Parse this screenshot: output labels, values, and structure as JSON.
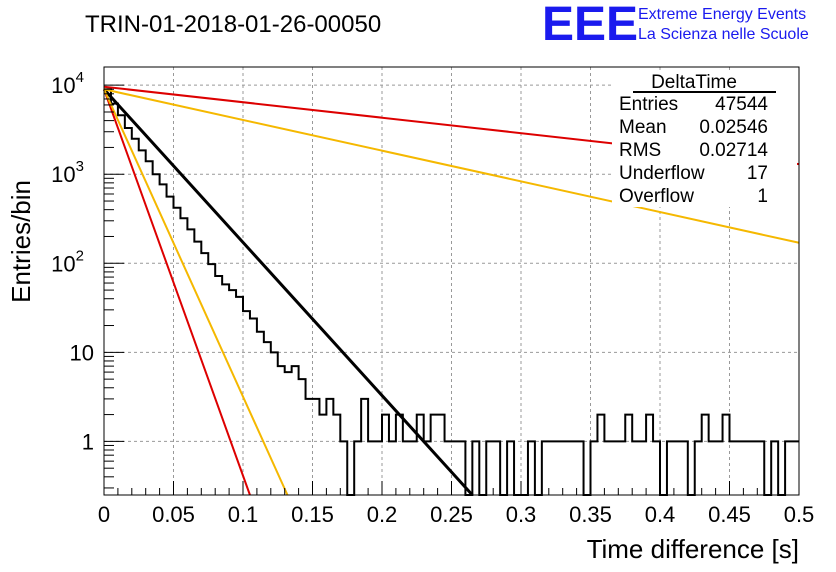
{
  "chart_data": {
    "type": "line",
    "title": "TRIN-01-2018-01-26-00050",
    "xlabel": "Time difference [s]",
    "ylabel": "Entries/bin",
    "xlim": [
      0,
      0.5
    ],
    "ylim": [
      0.25,
      16000
    ],
    "yscale": "log",
    "grid": true,
    "x_ticks": [
      "0",
      "0.05",
      "0.1",
      "0.15",
      "0.2",
      "0.25",
      "0.3",
      "0.35",
      "0.4",
      "0.45",
      "0.5"
    ],
    "y_ticks": [
      {
        "value": 1,
        "base": "1",
        "exp": ""
      },
      {
        "value": 10,
        "base": "10",
        "exp": ""
      },
      {
        "value": 100,
        "base": "10",
        "exp": "2"
      },
      {
        "value": 1000,
        "base": "10",
        "exp": "3"
      },
      {
        "value": 10000,
        "base": "10",
        "exp": "4"
      }
    ],
    "histogram": {
      "bin_width": 0.005,
      "color": "#000000",
      "counts": [
        9000,
        6200,
        4600,
        3300,
        2500,
        1850,
        1400,
        1000,
        770,
        560,
        420,
        320,
        240,
        175,
        130,
        98,
        72,
        58,
        50,
        42,
        29,
        24,
        17,
        13,
        10,
        7,
        6,
        7,
        5,
        3,
        3,
        2,
        3,
        2,
        1,
        0,
        1,
        3,
        1,
        1,
        2,
        1,
        2,
        1,
        1,
        2,
        1,
        2,
        2,
        1,
        1,
        1,
        0,
        1,
        0,
        1,
        1,
        0,
        1,
        0,
        0,
        1,
        0,
        1,
        1,
        1,
        1,
        1,
        1,
        0,
        1,
        2,
        1,
        1,
        1,
        2,
        1,
        1,
        2,
        1,
        0,
        1,
        1,
        1,
        0,
        1,
        2,
        1,
        1,
        2,
        1,
        1,
        1,
        1,
        1,
        0,
        1,
        0,
        1,
        1
      ]
    },
    "curves": [
      {
        "color": "#000000",
        "x": [
          0,
          0.265
        ],
        "y": [
          9000,
          0.25
        ]
      },
      {
        "color": "#dd0000",
        "x": [
          0,
          0.105
        ],
        "y": [
          9000,
          0.25
        ]
      },
      {
        "color": "#f5b800",
        "x": [
          0,
          0.132
        ],
        "y": [
          9000,
          0.25
        ]
      },
      {
        "color": "#dd0000",
        "x": [
          0,
          0.5
        ],
        "y": [
          9600,
          1300
        ]
      },
      {
        "color": "#f5b800",
        "x": [
          0,
          0.5
        ],
        "y": [
          9000,
          170
        ]
      }
    ]
  },
  "stats_box": {
    "title": "DeltaTime",
    "rows": [
      {
        "label": "Entries",
        "value": "47544"
      },
      {
        "label": "Mean",
        "value": "0.02546"
      },
      {
        "label": "RMS",
        "value": "0.02714"
      },
      {
        "label": "Underflow",
        "value": "17"
      },
      {
        "label": "Overflow",
        "value": "1"
      }
    ]
  },
  "logo": {
    "mark": "EEE",
    "line1": "Extreme Energy Events",
    "line2": "La Scienza nelle Scuole"
  }
}
